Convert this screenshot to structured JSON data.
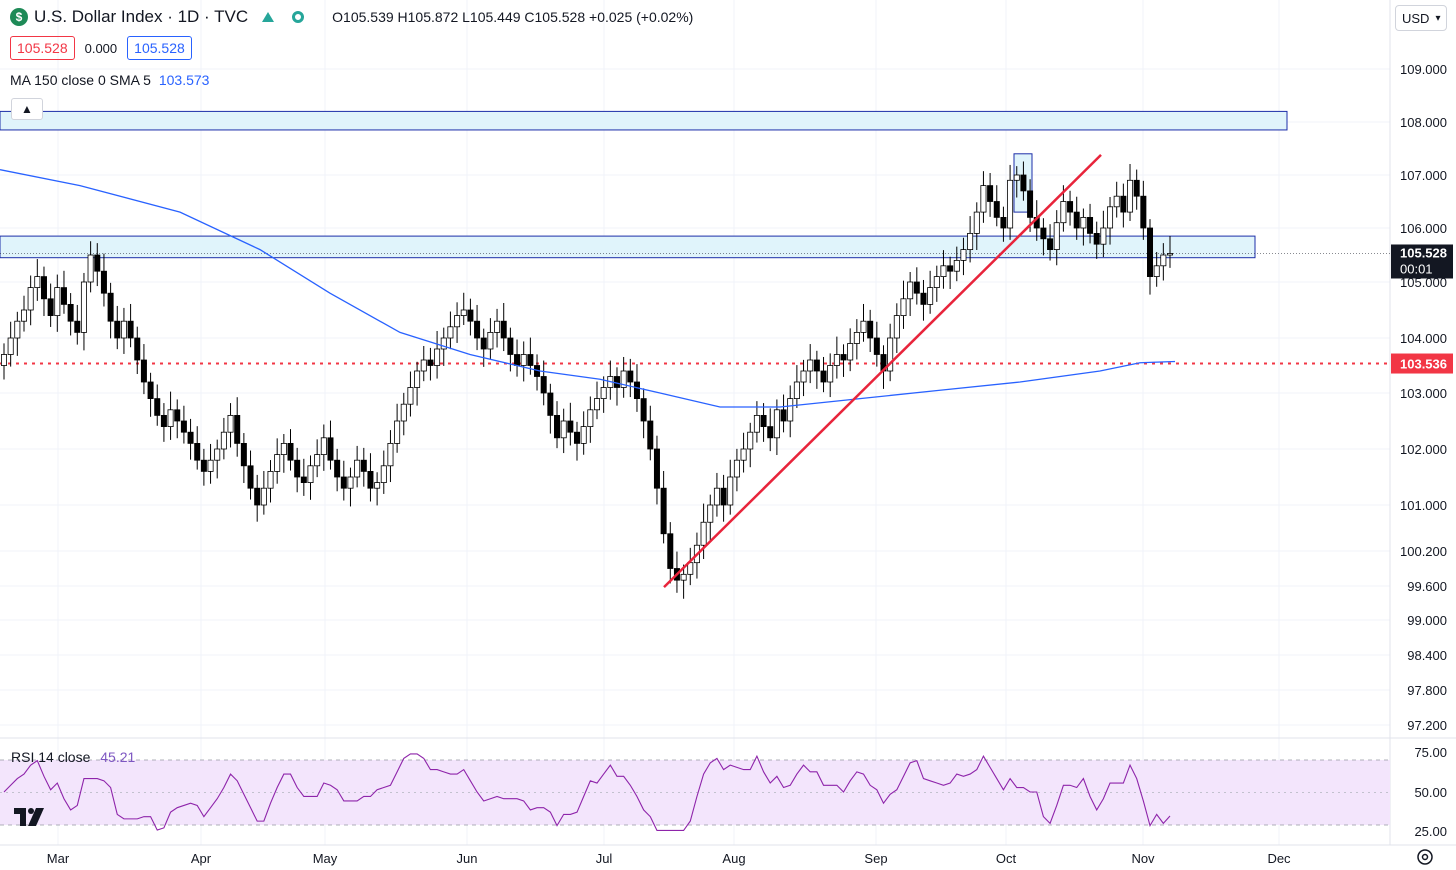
{
  "header": {
    "symbol_icon": "dollar-sign-icon",
    "title": "U.S. Dollar Index · 1D · TVC",
    "ohlc": "O105.539 H105.872 L105.449 C105.528 +0.025 (+0.02%)",
    "sell_price": "105.528",
    "spread": "0.000",
    "buy_price": "105.528",
    "ma_label": "MA 150 close 0 SMA 5",
    "ma_value": "103.573",
    "currency": "USD"
  },
  "rsi": {
    "label": "RSI 14 close",
    "value": "45.21"
  },
  "colors": {
    "up": "#ffffff",
    "down": "#000000",
    "ma": "#2962ff",
    "trend": "#e8243b",
    "support": "#f23645",
    "zone_fill": "#e0f4fb",
    "zone_stroke": "#1c2ea8",
    "rsi_line": "#8e24aa",
    "rsi_band": "#f3e5fc"
  },
  "chart_data": {
    "type": "candlestick",
    "symbol": "U.S. Dollar Index",
    "interval": "1D",
    "x_labels": [
      "Mar",
      "Apr",
      "May",
      "Jun",
      "Jul",
      "Aug",
      "Sep",
      "Oct",
      "Nov",
      "Dec"
    ],
    "y_ticks": [
      "109.000",
      "108.000",
      "107.000",
      "106.000",
      "105.000",
      "104.000",
      "103.000",
      "102.000",
      "101.000",
      "100.200",
      "99.600",
      "99.000",
      "98.400",
      "97.800",
      "97.200"
    ],
    "ylim": [
      96.9,
      109.8
    ],
    "last_price_label": "105.528",
    "countdown": "00:01",
    "support_label": "103.536",
    "support_level": 103.536,
    "resistance_zones": [
      [
        107.85,
        108.2
      ],
      [
        105.45,
        105.85
      ]
    ],
    "highlight_box": [
      106.3,
      107.4
    ],
    "trendline": [
      {
        "date": "Jul 16",
        "price": 99.58
      },
      {
        "date": "Oct 18",
        "price": 107.38
      }
    ],
    "ma150": [
      [
        0,
        107.1
      ],
      [
        80,
        106.8
      ],
      [
        180,
        106.3
      ],
      [
        260,
        105.6
      ],
      [
        330,
        104.8
      ],
      [
        400,
        104.1
      ],
      [
        470,
        103.7
      ],
      [
        540,
        103.4
      ],
      [
        600,
        103.25
      ],
      [
        660,
        103.0
      ],
      [
        720,
        102.75
      ],
      [
        780,
        102.75
      ],
      [
        860,
        102.9
      ],
      [
        940,
        103.05
      ],
      [
        1020,
        103.2
      ],
      [
        1100,
        103.4
      ],
      [
        1140,
        103.55
      ],
      [
        1175,
        103.573
      ]
    ],
    "closes": [
      103.7,
      104.0,
      104.3,
      104.5,
      104.9,
      105.1,
      104.7,
      104.4,
      104.9,
      104.6,
      104.3,
      104.1,
      105.0,
      105.5,
      105.2,
      104.8,
      104.3,
      104.0,
      104.3,
      104.0,
      103.6,
      103.2,
      102.9,
      102.6,
      102.4,
      102.7,
      102.5,
      102.3,
      102.1,
      101.8,
      101.6,
      101.8,
      102.0,
      102.3,
      102.6,
      102.1,
      101.7,
      101.3,
      101.0,
      101.3,
      101.6,
      101.9,
      102.1,
      101.8,
      101.5,
      101.4,
      101.7,
      101.9,
      102.2,
      101.8,
      101.5,
      101.3,
      101.5,
      101.8,
      101.6,
      101.3,
      101.4,
      101.7,
      102.1,
      102.5,
      102.8,
      103.1,
      103.4,
      103.6,
      103.5,
      103.8,
      104.0,
      104.2,
      104.4,
      104.5,
      104.3,
      104.0,
      103.8,
      104.1,
      104.3,
      104.0,
      103.7,
      103.5,
      103.7,
      103.5,
      103.3,
      103.0,
      102.6,
      102.2,
      102.5,
      102.3,
      102.1,
      102.4,
      102.7,
      102.9,
      103.1,
      103.3,
      103.1,
      103.4,
      103.2,
      102.9,
      102.5,
      102.0,
      101.3,
      100.5,
      99.9,
      99.7,
      99.8,
      100.0,
      100.3,
      100.7,
      101.0,
      101.3,
      101.0,
      101.5,
      101.8,
      102.0,
      102.3,
      102.6,
      102.4,
      102.2,
      102.7,
      102.5,
      102.9,
      103.2,
      103.4,
      103.6,
      103.4,
      103.2,
      103.5,
      103.7,
      103.6,
      103.9,
      104.1,
      104.3,
      104.0,
      103.7,
      103.4,
      104.0,
      104.4,
      104.7,
      105.0,
      104.8,
      104.6,
      104.9,
      105.1,
      105.3,
      105.2,
      105.4,
      105.6,
      105.9,
      106.3,
      106.8,
      106.5,
      106.2,
      106.0,
      106.9,
      107.0,
      106.7,
      106.2,
      106.0,
      105.8,
      105.6,
      106.1,
      106.5,
      106.3,
      106.0,
      106.2,
      105.9,
      105.7,
      106.0,
      106.4,
      106.6,
      106.3,
      106.9,
      106.6,
      106.0,
      105.1,
      105.3,
      105.5,
      105.528
    ]
  }
}
